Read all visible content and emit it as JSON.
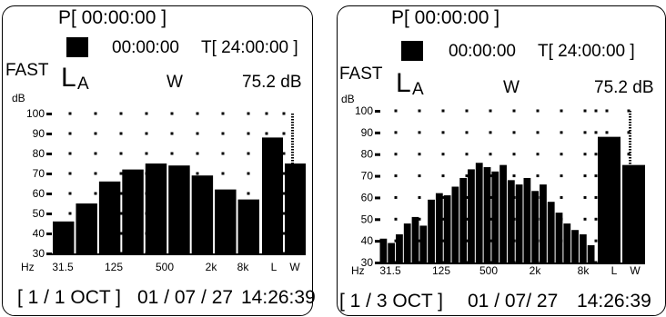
{
  "panels": [
    {
      "id": "left",
      "pause_time": "P[ 00:00:00 ]",
      "elapsed_time": "00:00:00",
      "target_time": "T[ 24:00:00 ]",
      "time_weighting": "FAST",
      "measure_symbol": "L",
      "measure_subscript": "A",
      "frequency_weighting": "W",
      "level_readout": "75.2 dB",
      "band_mode": "[ 1 / 1   OCT ]",
      "date": "01 / 07 / 27",
      "time": "14:26:39",
      "chart_data": {
        "type": "bar",
        "ylabel": "dB",
        "xlabel": "Hz",
        "ylim": [
          30,
          100
        ],
        "y_ticks": [
          100,
          90,
          80,
          70,
          60,
          50,
          40,
          30
        ],
        "x_tick_labels": [
          "31.5",
          "125",
          "500",
          "2k",
          "8k",
          "L",
          "W"
        ],
        "band_values": [
          46,
          55,
          66,
          72,
          75,
          74,
          69,
          62,
          57
        ],
        "overall": [
          {
            "label": "L",
            "value": 88
          },
          {
            "label": "W",
            "value": 75
          }
        ]
      }
    },
    {
      "id": "right",
      "pause_time": "P[ 00:00:00 ]",
      "elapsed_time": "00:00:00",
      "target_time": "T[ 24:00:00 ]",
      "time_weighting": "FAST",
      "measure_symbol": "L",
      "measure_subscript": "A",
      "frequency_weighting": "W",
      "level_readout": "75.2 dB",
      "band_mode": "[ 1 / 3   OCT ]",
      "date": "01 / 07/ 27",
      "time": "14:26:39",
      "chart_data": {
        "type": "bar",
        "ylabel": "dB",
        "xlabel": "Hz",
        "ylim": [
          30,
          100
        ],
        "y_ticks": [
          100,
          90,
          80,
          70,
          60,
          50,
          40,
          30
        ],
        "x_tick_labels": [
          "31.5",
          "125",
          "500",
          "2k",
          "8k",
          "L",
          "W"
        ],
        "band_values": [
          41,
          39,
          43,
          48,
          51,
          47,
          59,
          62,
          61,
          65,
          69,
          73,
          76,
          74,
          72,
          75,
          68,
          66,
          69,
          63,
          66,
          58,
          53,
          48,
          45,
          43,
          38
        ],
        "overall": [
          {
            "label": "L",
            "value": 88
          },
          {
            "label": "W",
            "value": 75
          }
        ]
      }
    }
  ]
}
